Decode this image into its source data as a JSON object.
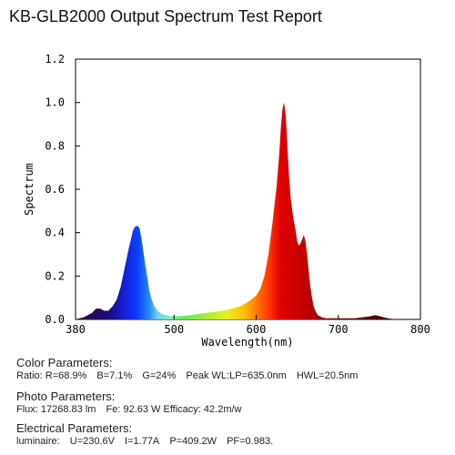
{
  "title": "KB-GLB2000 Output Spectrum Test Report",
  "chart_data": {
    "type": "area",
    "xlabel": "Wavelength(nm)",
    "ylabel": "Spectrum",
    "xlim": [
      380,
      800
    ],
    "ylim": [
      0,
      1.2
    ],
    "x_ticks": [
      "380",
      "500",
      "600",
      "700",
      "800"
    ],
    "y_ticks": [
      "0.0",
      "0.2",
      "0.4",
      "0.6",
      "0.8",
      "1.0",
      "1.2"
    ],
    "x_tick_values": [
      380,
      500,
      600,
      700,
      800
    ],
    "y_tick_values": [
      0,
      0.2,
      0.4,
      0.6,
      0.8,
      1.0,
      1.2
    ],
    "grid": false,
    "fill": "wavelength-colored spectrum",
    "series": [
      {
        "x": [
          380,
          390,
          400,
          405,
          410,
          415,
          420,
          425,
          430,
          435,
          440,
          445,
          450,
          453,
          456,
          458,
          460,
          462,
          465,
          468,
          470,
          473,
          476,
          480,
          485,
          490,
          495,
          500,
          510,
          520,
          530,
          540,
          550,
          560,
          570,
          580,
          590,
          600,
          605,
          610,
          615,
          620,
          625,
          628,
          630,
          632,
          634,
          636,
          638,
          640,
          642,
          644,
          646,
          648,
          650,
          652,
          654,
          656,
          658,
          660,
          662,
          664,
          666,
          668,
          670,
          672,
          675,
          680,
          685,
          690,
          700,
          710,
          720,
          730,
          740,
          745,
          750,
          760,
          770,
          780,
          790,
          800
        ],
        "y": [
          0.0,
          0.01,
          0.03,
          0.05,
          0.05,
          0.04,
          0.04,
          0.06,
          0.09,
          0.15,
          0.24,
          0.33,
          0.41,
          0.43,
          0.43,
          0.42,
          0.38,
          0.33,
          0.25,
          0.18,
          0.13,
          0.09,
          0.06,
          0.04,
          0.025,
          0.02,
          0.015,
          0.015,
          0.015,
          0.02,
          0.025,
          0.03,
          0.035,
          0.04,
          0.05,
          0.06,
          0.08,
          0.11,
          0.14,
          0.2,
          0.3,
          0.45,
          0.62,
          0.76,
          0.88,
          0.97,
          1.0,
          0.94,
          0.8,
          0.66,
          0.56,
          0.5,
          0.45,
          0.41,
          0.36,
          0.34,
          0.35,
          0.37,
          0.39,
          0.36,
          0.3,
          0.22,
          0.15,
          0.1,
          0.06,
          0.04,
          0.02,
          0.01,
          0.005,
          0.005,
          0.005,
          0.005,
          0.005,
          0.01,
          0.015,
          0.02,
          0.015,
          0.005,
          0.0,
          0.0,
          0.0,
          0.0
        ]
      }
    ]
  },
  "color_params": {
    "heading": "Color Parameters:",
    "ratio": "Ratio: R=68.9%",
    "b": "B=7.1%",
    "g": "G=24%",
    "peak": "Peak WL:LP=635.0nm",
    "hwl": "HWL=20.5nm"
  },
  "photo_params": {
    "heading": "Photo Parameters:",
    "flux": "Flux: 17268.83 lm",
    "fe": "Fe: 92.63",
    "efficacy": "W  Efficacy: 42.2m/w"
  },
  "electrical_params": {
    "heading": "Electrical Parameters:",
    "luminaire": "luminaire:",
    "u": "U=230.6V",
    "i": "I=1.77A",
    "p": "P=409.2W",
    "pf": "PF=0.983."
  }
}
